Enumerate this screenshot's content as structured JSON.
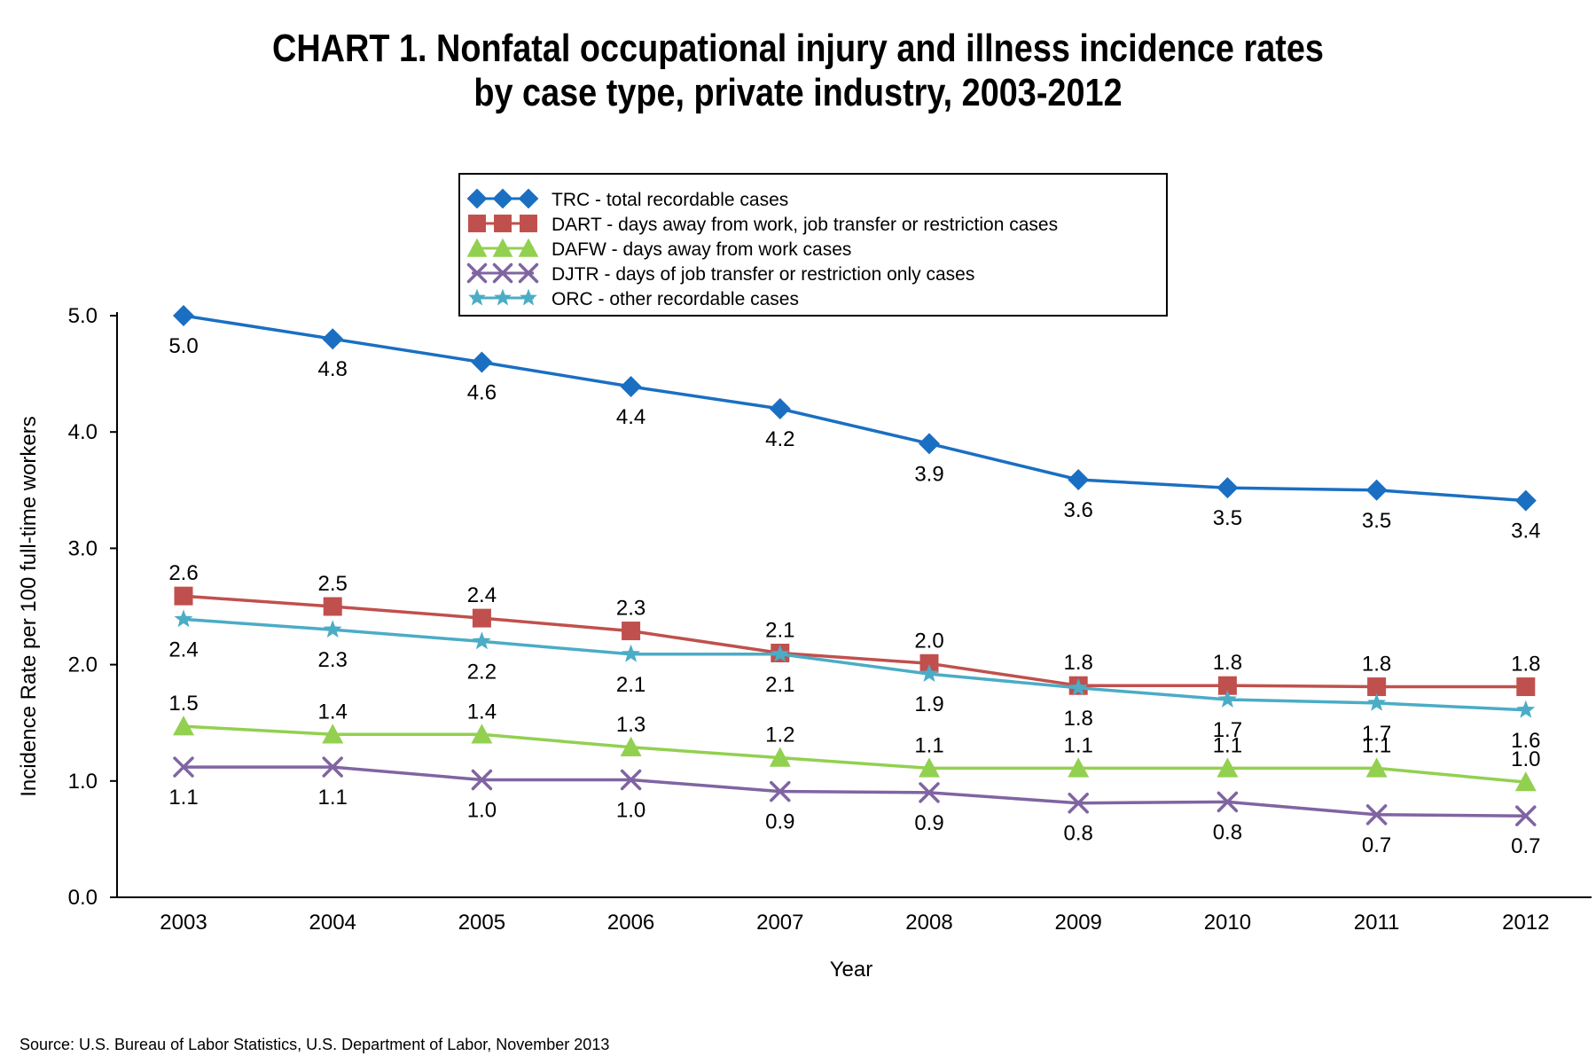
{
  "title_line1": "CHART 1. Nonfatal occupational injury and illness incidence rates",
  "title_line2": "by case type, private industry, 2003-2012",
  "source": "Source: U.S. Bureau of Labor Statistics, U.S. Department of Labor, November 2013",
  "chart_data": {
    "type": "line",
    "title": "CHART 1. Nonfatal occupational injury and illness incidence rates by case type, private industry, 2003-2012",
    "xlabel": "Year",
    "ylabel": "Incidence Rate per 100 full-time workers",
    "x": [
      "2003",
      "2004",
      "2005",
      "2006",
      "2007",
      "2008",
      "2009",
      "2010",
      "2011",
      "2012"
    ],
    "ylim": [
      0,
      5.0
    ],
    "yticks": [
      "0.0",
      "1.0",
      "2.0",
      "3.0",
      "4.0",
      "5.0"
    ],
    "grid": false,
    "legend_position": "top-center",
    "series": [
      {
        "name": "TRC - total recordable cases",
        "color": "#1a6fc2",
        "marker": "diamond",
        "values": [
          5.0,
          4.8,
          4.6,
          4.39,
          4.2,
          3.9,
          3.59,
          3.52,
          3.5,
          3.41
        ],
        "labels": [
          "5.0",
          "4.8",
          "4.6",
          "4.4",
          "4.2",
          "3.9",
          "3.6",
          "3.5",
          "3.5",
          "3.4"
        ],
        "label_pos": "below"
      },
      {
        "name": "DART - days away from work, job transfer or restriction cases",
        "color": "#c0504d",
        "marker": "square",
        "values": [
          2.59,
          2.5,
          2.4,
          2.29,
          2.1,
          2.01,
          1.82,
          1.82,
          1.81,
          1.81
        ],
        "labels": [
          "2.6",
          "2.5",
          "2.4",
          "2.3",
          "2.1",
          "2.0",
          "1.8",
          "1.8",
          "1.8",
          "1.8"
        ],
        "label_pos": "above"
      },
      {
        "name": "DAFW - days away from work cases",
        "color": "#92d050",
        "marker": "triangle",
        "values": [
          1.47,
          1.4,
          1.4,
          1.29,
          1.2,
          1.11,
          1.11,
          1.11,
          1.11,
          0.99
        ],
        "labels": [
          "1.5",
          "1.4",
          "1.4",
          "1.3",
          "1.2",
          "1.1",
          "1.1",
          "1.1",
          "1.1",
          "1.0"
        ],
        "label_pos": "above"
      },
      {
        "name": "DJTR - days of job transfer or restriction only cases",
        "color": "#8064a2",
        "marker": "x",
        "values": [
          1.12,
          1.12,
          1.01,
          1.01,
          0.91,
          0.9,
          0.81,
          0.82,
          0.71,
          0.7
        ],
        "labels": [
          "1.1",
          "1.1",
          "1.0",
          "1.0",
          "0.9",
          "0.9",
          "0.8",
          "0.8",
          "0.7",
          "0.7"
        ],
        "label_pos": "below"
      },
      {
        "name": "ORC - other recordable cases",
        "color": "#4bacc6",
        "marker": "star",
        "values": [
          2.39,
          2.3,
          2.2,
          2.09,
          2.09,
          1.92,
          1.8,
          1.7,
          1.67,
          1.61
        ],
        "labels": [
          "2.4",
          "2.3",
          "2.2",
          "2.1",
          "2.1",
          "1.9",
          "1.8",
          "1.7",
          "1.7",
          "1.6"
        ],
        "label_pos": "below"
      }
    ]
  }
}
